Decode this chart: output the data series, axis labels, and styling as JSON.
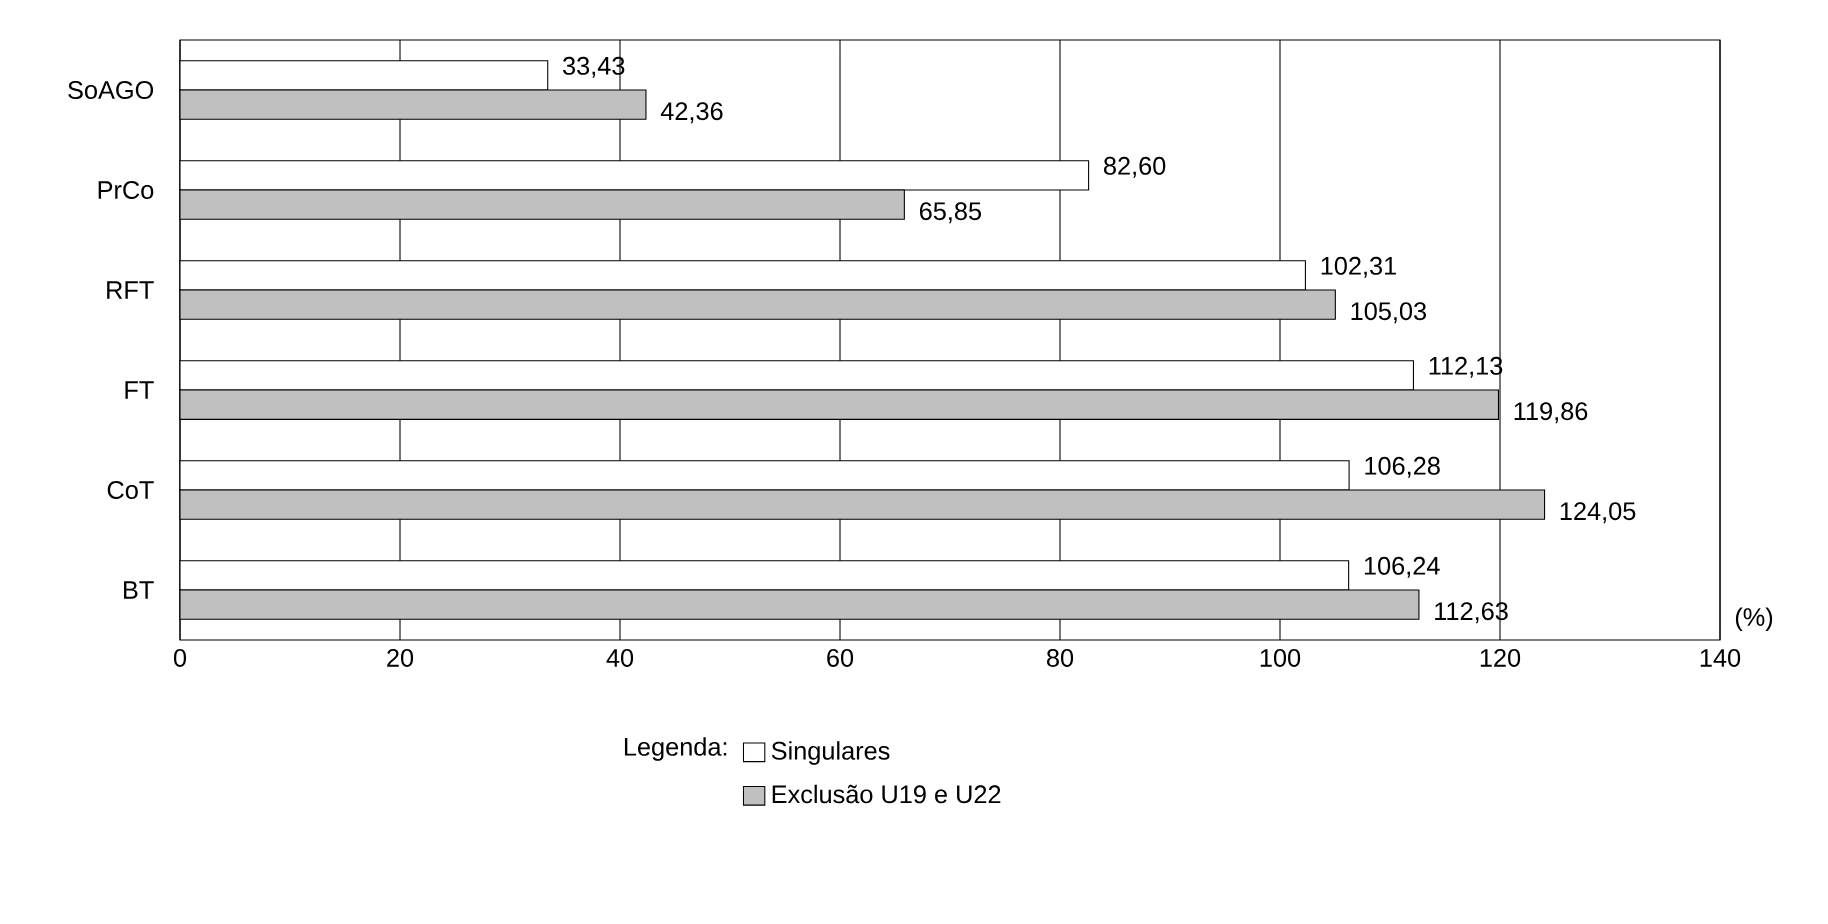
{
  "chart_data": {
    "type": "bar",
    "orientation": "horizontal",
    "categories": [
      "SoAGO",
      "PrCo",
      "RFT",
      "FT",
      "CoT",
      "BT"
    ],
    "series": [
      {
        "name": "Singulares",
        "color": "#ffffff",
        "values": [
          33.43,
          82.6,
          102.31,
          112.13,
          106.28,
          106.24
        ],
        "value_labels": [
          "33,43",
          "82,60",
          "102,31",
          "112,13",
          "106,28",
          "106,24"
        ]
      },
      {
        "name": "Exclusão U19 e U22",
        "color": "#c0c0c0",
        "values": [
          42.36,
          65.85,
          105.03,
          119.86,
          124.05,
          112.63
        ],
        "value_labels": [
          "42,36",
          "65,85",
          "105,03",
          "119,86",
          "124,05",
          "112,63"
        ]
      }
    ],
    "xlim": [
      0,
      140
    ],
    "xticks": [
      0,
      20,
      40,
      60,
      80,
      100,
      120,
      140
    ],
    "xlabel": "(%)",
    "grid": "x",
    "legend": "bottom",
    "legend_title": "Legenda:"
  }
}
